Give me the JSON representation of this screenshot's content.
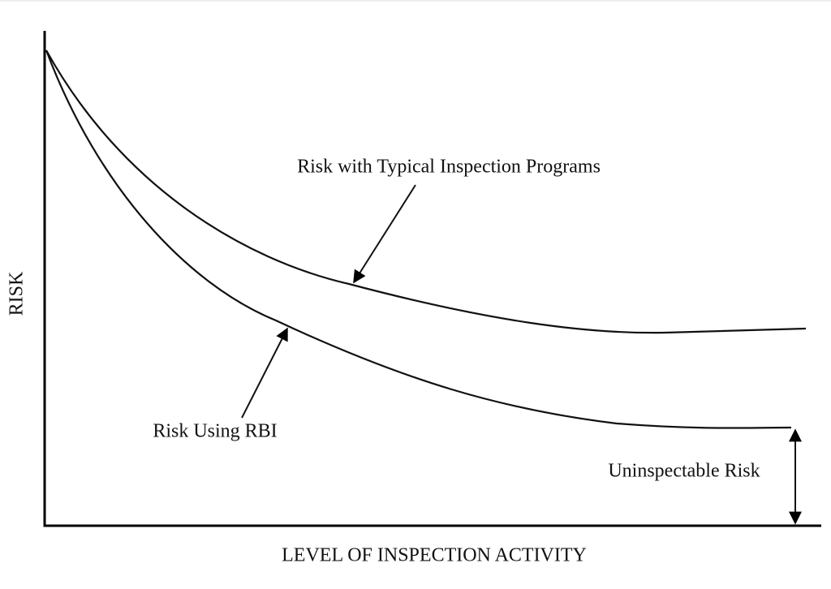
{
  "axes": {
    "x_label": "LEVEL OF INSPECTION ACTIVITY",
    "y_label": "RISK"
  },
  "annotations": {
    "typical": "Risk with Typical Inspection Programs",
    "rbi": "Risk Using RBI",
    "uninspectable": "Uninspectable Risk"
  }
}
